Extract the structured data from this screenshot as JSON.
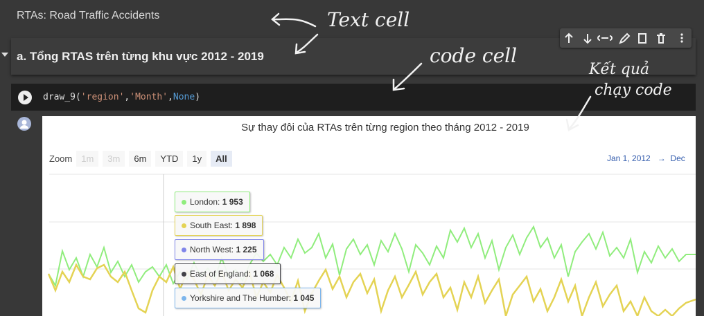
{
  "text_cell": "RTAs: Road Traffic Accidents",
  "heading_cell": "a. Tổng RTAS trên từng khu vực 2012 - 2019",
  "code_cell": [
    "draw_9(",
    "'region'",
    ",",
    "'Month'",
    ",",
    "None",
    ")"
  ],
  "output": {
    "title": "Sự thay đôi của RTAs trên từng region theo tháng 2012 - 2019",
    "zoom_label": "Zoom",
    "zoom_buttons": [
      "1m",
      "3m",
      "6m",
      "YTD",
      "1y",
      "All"
    ],
    "date_from": "Jan 1, 2012",
    "date_arrow": "→",
    "date_to": "Dec"
  },
  "tooltips": [
    {
      "name": "London",
      "value": "1 953",
      "color": "#90ed7d"
    },
    {
      "name": "South East",
      "value": "1 898",
      "color": "#e4d354"
    },
    {
      "name": "North West",
      "value": "1 225",
      "color": "#8085e9"
    },
    {
      "name": "East of England",
      "value": "1 068",
      "color": "#434348"
    },
    {
      "name": "Yorkshire and The Humber",
      "value": "1 045",
      "color": "#7cb5ec"
    }
  ],
  "annotations": [
    "Text cell",
    "code cell",
    "Kết quả",
    "chạy code"
  ]
}
